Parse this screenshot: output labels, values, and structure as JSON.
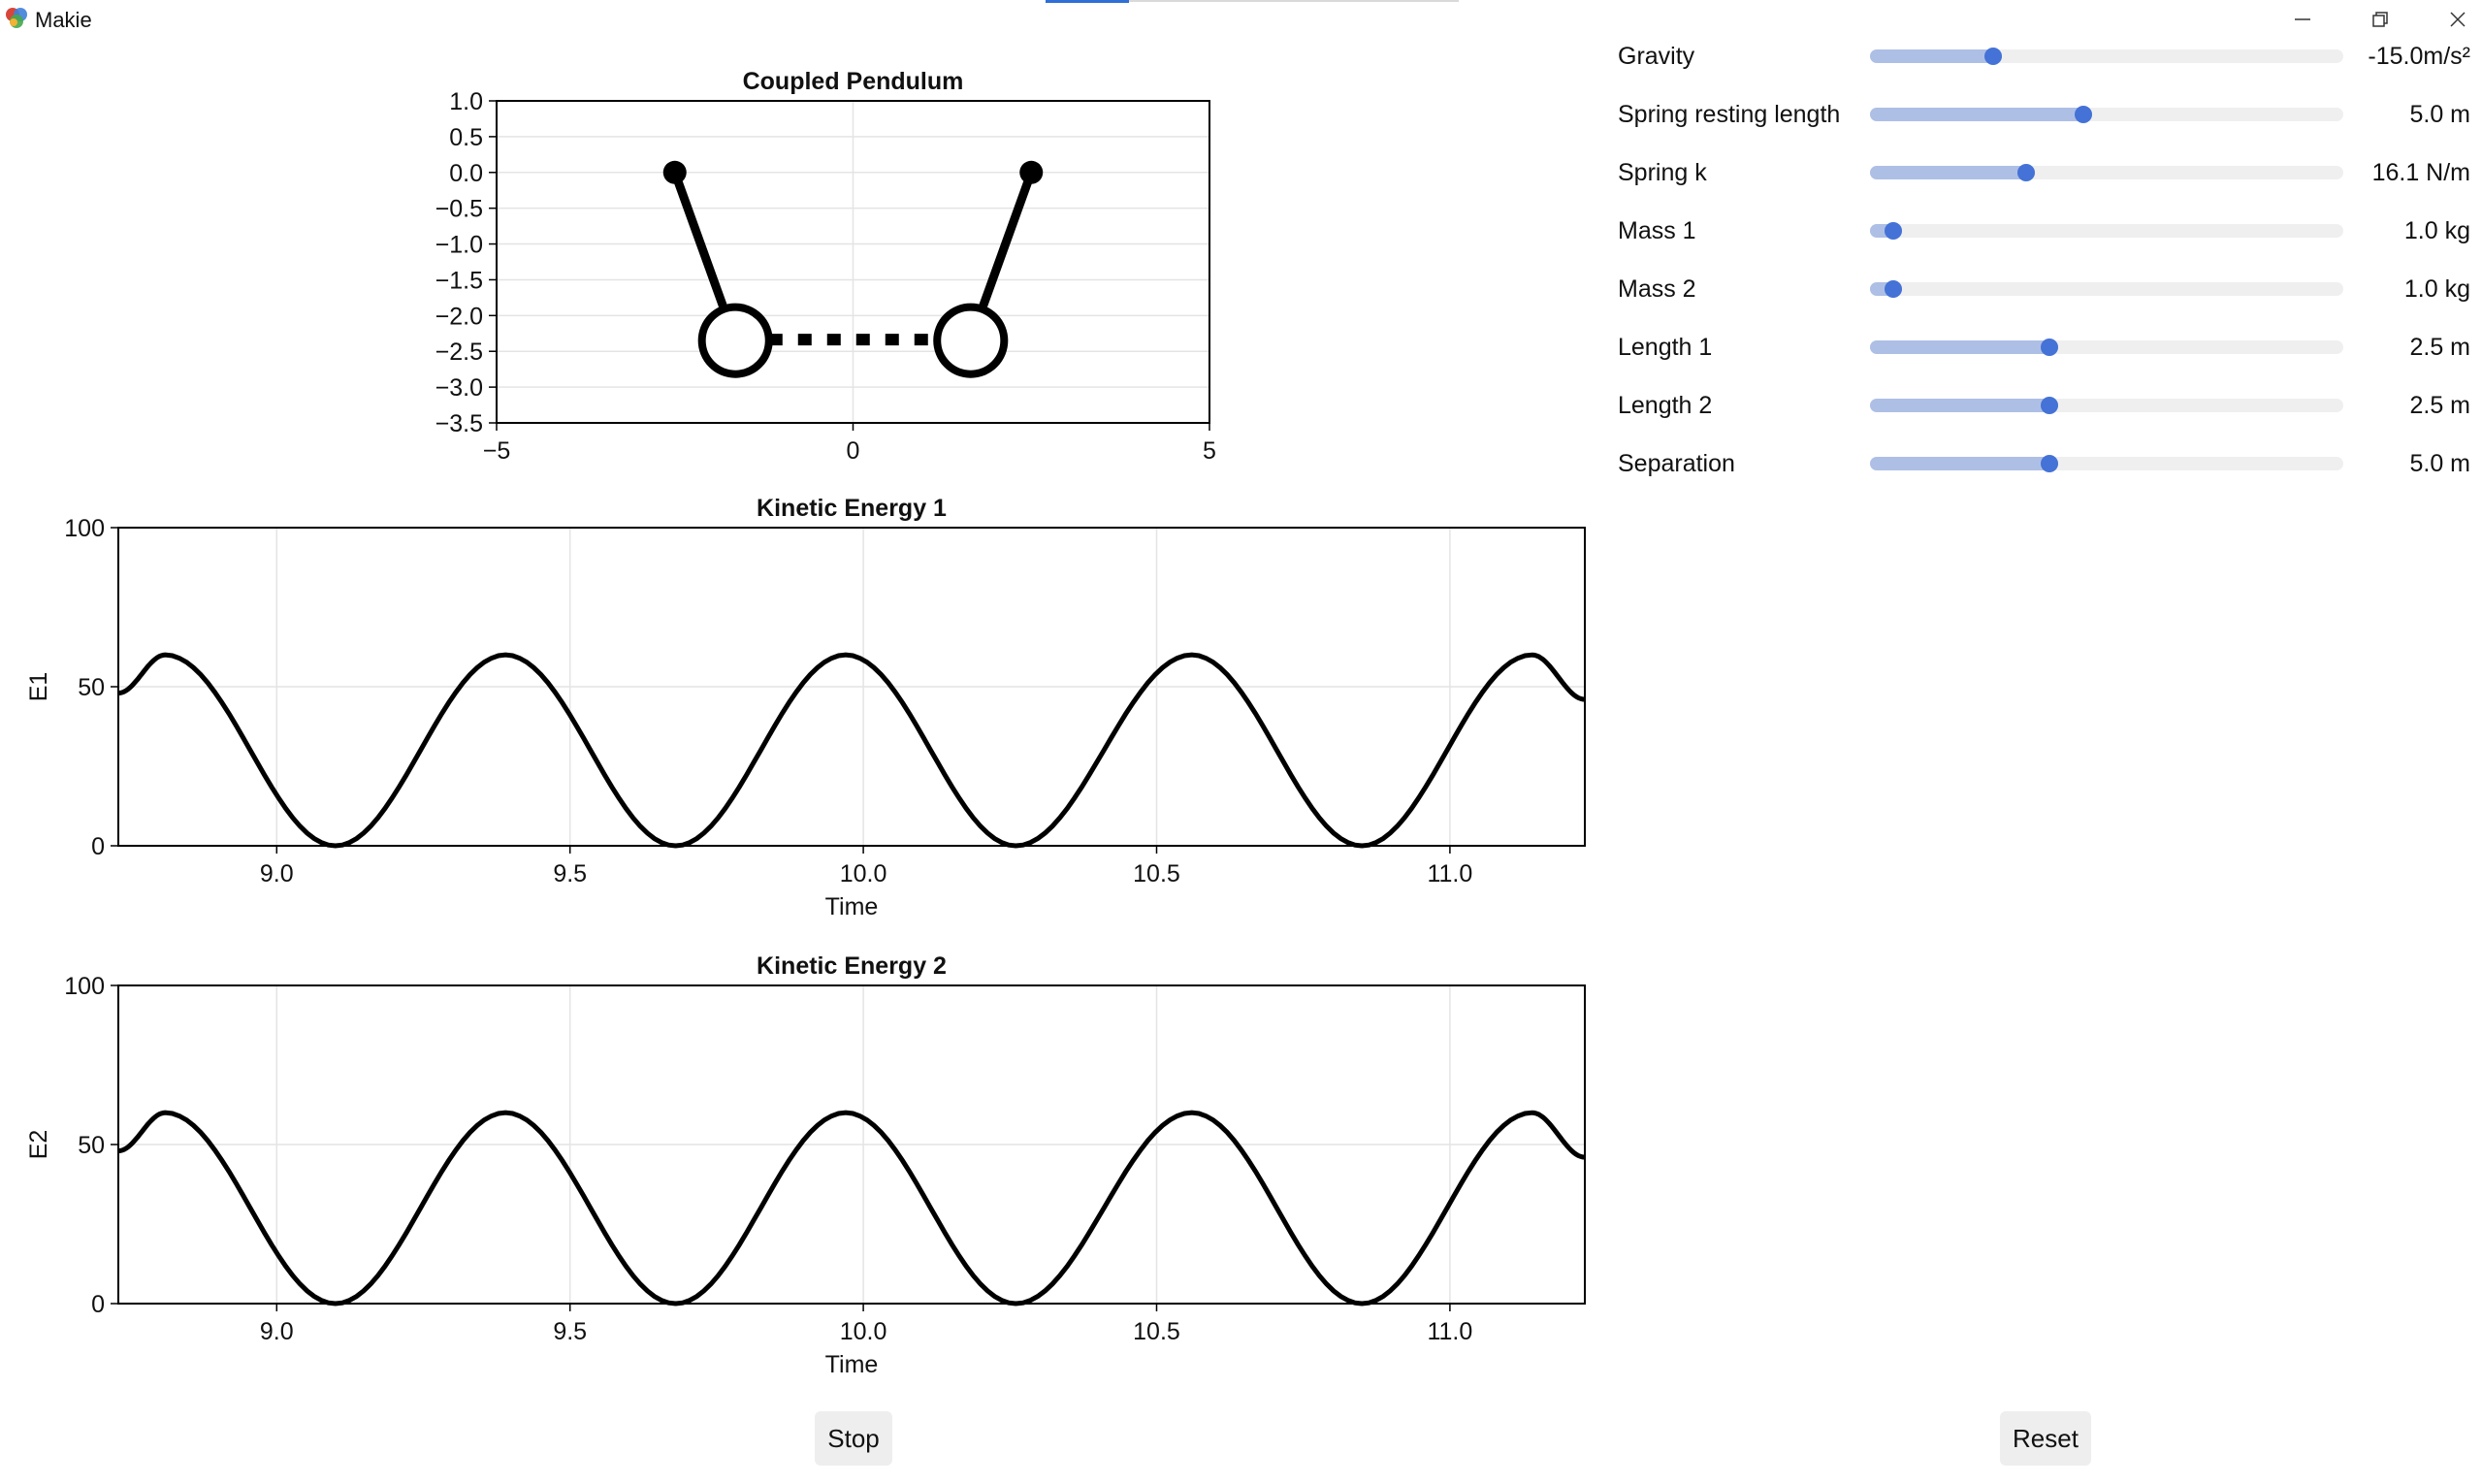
{
  "window": {
    "title": "Makie"
  },
  "pendulum_plot": {
    "title": "Coupled Pendulum",
    "x_ticks": [
      "−5",
      "0",
      "5"
    ],
    "y_ticks": [
      "1.0",
      "0.5",
      "0.0",
      "−0.5",
      "−1.0",
      "−1.5",
      "−2.0",
      "−2.5",
      "−3.0",
      "−3.5"
    ],
    "xlim": [
      -5,
      5
    ],
    "ylim": [
      -3.5,
      1.0
    ],
    "pivots": [
      [
        -2.5,
        0.0
      ],
      [
        2.5,
        0.0
      ]
    ],
    "bobs": [
      [
        -1.65,
        -2.35
      ],
      [
        1.65,
        -2.35
      ]
    ],
    "bob_radius": 0.5
  },
  "chart_data": [
    {
      "type": "line",
      "title": "Kinetic Energy 1",
      "xlabel": "Time",
      "ylabel": "E1",
      "xlim": [
        8.73,
        11.23
      ],
      "ylim": [
        0,
        100
      ],
      "x_ticks": [
        "9.0",
        "9.5",
        "10.0",
        "10.5",
        "11.0"
      ],
      "y_ticks": [
        "0",
        "50",
        "100"
      ],
      "grid": true,
      "series": [
        {
          "x": [
            8.73,
            8.81,
            9.1,
            9.39,
            9.68,
            9.97,
            10.26,
            10.56,
            10.85,
            11.14,
            11.23
          ],
          "y": [
            48,
            60,
            0,
            60,
            0,
            60,
            0,
            60,
            0,
            60,
            46
          ]
        }
      ]
    },
    {
      "type": "line",
      "title": "Kinetic Energy 2",
      "xlabel": "Time",
      "ylabel": "E2",
      "xlim": [
        8.73,
        11.23
      ],
      "ylim": [
        0,
        100
      ],
      "x_ticks": [
        "9.0",
        "9.5",
        "10.0",
        "10.5",
        "11.0"
      ],
      "y_ticks": [
        "0",
        "50",
        "100"
      ],
      "grid": true,
      "series": [
        {
          "x": [
            8.73,
            8.81,
            9.1,
            9.39,
            9.68,
            9.97,
            10.26,
            10.56,
            10.85,
            11.14,
            11.23
          ],
          "y": [
            48,
            60,
            0,
            60,
            0,
            60,
            0,
            60,
            0,
            60,
            46
          ]
        }
      ]
    }
  ],
  "sliders": [
    {
      "label": "Gravity",
      "value": "-15.0m/s²",
      "fraction": 0.26
    },
    {
      "label": "Spring resting length",
      "value": "5.0 m",
      "fraction": 0.45
    },
    {
      "label": "Spring k",
      "value": "16.1 N/m",
      "fraction": 0.33
    },
    {
      "label": "Mass 1",
      "value": "1.0 kg",
      "fraction": 0.05
    },
    {
      "label": "Mass 2",
      "value": "1.0 kg",
      "fraction": 0.05
    },
    {
      "label": "Length 1",
      "value": "2.5 m",
      "fraction": 0.38
    },
    {
      "label": "Length 2",
      "value": "2.5 m",
      "fraction": 0.38
    },
    {
      "label": "Separation",
      "value": "5.0 m",
      "fraction": 0.38
    }
  ],
  "buttons": {
    "stop": "Stop",
    "reset": "Reset"
  },
  "colors": {
    "slider_fill": "#aebfe6",
    "slider_knob": "#4472d6",
    "slider_track": "#efefef",
    "line": "#000000"
  }
}
